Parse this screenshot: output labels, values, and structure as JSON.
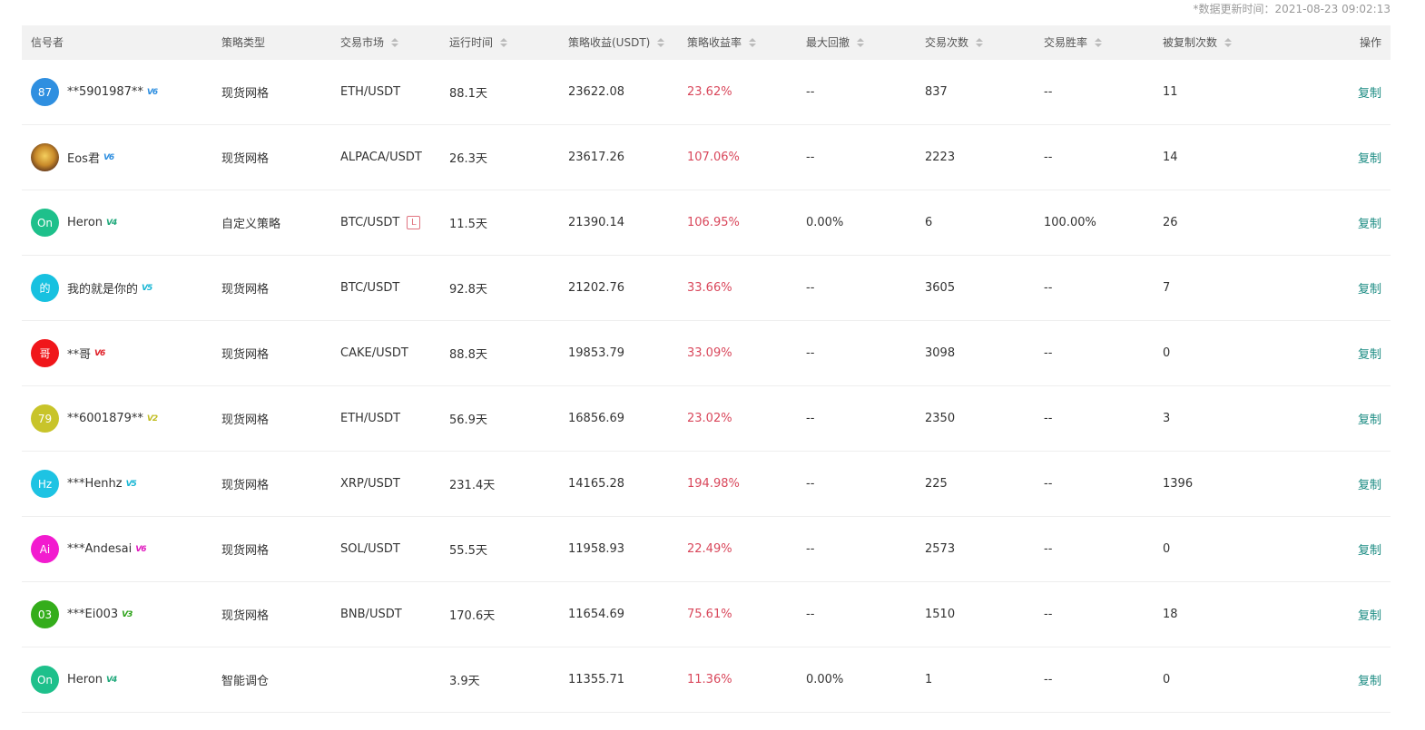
{
  "update_time": "*数据更新时间：2021-08-23 09:02:13",
  "columns": [
    {
      "key": "signal",
      "label": "信号者",
      "sortable": false
    },
    {
      "key": "type",
      "label": "策略类型",
      "sortable": false
    },
    {
      "key": "market",
      "label": "交易市场",
      "sortable": true
    },
    {
      "key": "runtime",
      "label": "运行时间",
      "sortable": true
    },
    {
      "key": "profit",
      "label": "策略收益(USDT)",
      "sortable": true
    },
    {
      "key": "rate",
      "label": "策略收益率",
      "sortable": true
    },
    {
      "key": "drawdown",
      "label": "最大回撤",
      "sortable": true
    },
    {
      "key": "trades",
      "label": "交易次数",
      "sortable": true
    },
    {
      "key": "winrate",
      "label": "交易胜率",
      "sortable": true
    },
    {
      "key": "copies",
      "label": "被复制次数",
      "sortable": true
    },
    {
      "key": "action",
      "label": "操作",
      "sortable": false
    }
  ],
  "action_label": "复制",
  "rows": [
    {
      "avatar_text": "87",
      "avatar_color": "#2f8fe0",
      "name": "**5901987**",
      "vip_label": "V6",
      "vip_color": "#2f8fe0",
      "type": "现货网格",
      "market": "ETH/USDT",
      "badge": "",
      "runtime": "88.1天",
      "profit": "23622.08",
      "rate": "23.62%",
      "drawdown": "--",
      "trades": "837",
      "winrate": "--",
      "copies": "11"
    },
    {
      "avatar_text": "",
      "avatar_color": "",
      "avatar_image": "emoji-avatar",
      "name": "Eos君",
      "vip_label": "V6",
      "vip_color": "#2f8fe0",
      "type": "现货网格",
      "market": "ALPACA/USDT",
      "badge": "",
      "runtime": "26.3天",
      "profit": "23617.26",
      "rate": "107.06%",
      "drawdown": "--",
      "trades": "2223",
      "winrate": "--",
      "copies": "14"
    },
    {
      "avatar_text": "On",
      "avatar_color": "#1ec08b",
      "name": "Heron",
      "vip_label": "V4",
      "vip_color": "#1ea87a",
      "type": "自定义策略",
      "market": "BTC/USDT",
      "badge": "L",
      "runtime": "11.5天",
      "profit": "21390.14",
      "rate": "106.95%",
      "drawdown": "0.00%",
      "trades": "6",
      "winrate": "100.00%",
      "copies": "26"
    },
    {
      "avatar_text": "的",
      "avatar_color": "#17c1e0",
      "name": "我的就是你的",
      "vip_label": "V5",
      "vip_color": "#17b6d4",
      "type": "现货网格",
      "market": "BTC/USDT",
      "badge": "",
      "runtime": "92.8天",
      "profit": "21202.76",
      "rate": "33.66%",
      "drawdown": "--",
      "trades": "3605",
      "winrate": "--",
      "copies": "7"
    },
    {
      "avatar_text": "哥",
      "avatar_color": "#f0161a",
      "name": "**哥",
      "vip_label": "V6",
      "vip_color": "#e0222a",
      "type": "现货网格",
      "market": "CAKE/USDT",
      "badge": "",
      "runtime": "88.8天",
      "profit": "19853.79",
      "rate": "33.09%",
      "drawdown": "--",
      "trades": "3098",
      "winrate": "--",
      "copies": "0"
    },
    {
      "avatar_text": "79",
      "avatar_color": "#c8c42a",
      "name": "**6001879**",
      "vip_label": "V2",
      "vip_color": "#c2be25",
      "type": "现货网格",
      "market": "ETH/USDT",
      "badge": "",
      "runtime": "56.9天",
      "profit": "16856.69",
      "rate": "23.02%",
      "drawdown": "--",
      "trades": "2350",
      "winrate": "--",
      "copies": "3"
    },
    {
      "avatar_text": "Hz",
      "avatar_color": "#1ec3e3",
      "name": "***Henhz",
      "vip_label": "V5",
      "vip_color": "#17b6d4",
      "type": "现货网格",
      "market": "XRP/USDT",
      "badge": "",
      "runtime": "231.4天",
      "profit": "14165.28",
      "rate": "194.98%",
      "drawdown": "--",
      "trades": "225",
      "winrate": "--",
      "copies": "1396"
    },
    {
      "avatar_text": "Ai",
      "avatar_color": "#f21bcf",
      "name": "***Andesai",
      "vip_label": "V6",
      "vip_color": "#e01bbf",
      "type": "现货网格",
      "market": "SOL/USDT",
      "badge": "",
      "runtime": "55.5天",
      "profit": "11958.93",
      "rate": "22.49%",
      "drawdown": "--",
      "trades": "2573",
      "winrate": "--",
      "copies": "0"
    },
    {
      "avatar_text": "03",
      "avatar_color": "#34ad1b",
      "name": "***Ei003",
      "vip_label": "V3",
      "vip_color": "#2ea31a",
      "type": "现货网格",
      "market": "BNB/USDT",
      "badge": "",
      "runtime": "170.6天",
      "profit": "11654.69",
      "rate": "75.61%",
      "drawdown": "--",
      "trades": "1510",
      "winrate": "--",
      "copies": "18"
    },
    {
      "avatar_text": "On",
      "avatar_color": "#1ec08b",
      "name": "Heron",
      "vip_label": "V4",
      "vip_color": "#1ea87a",
      "type": "智能调仓",
      "market": "",
      "badge": "",
      "runtime": "3.9天",
      "profit": "11355.71",
      "rate": "11.36%",
      "drawdown": "0.00%",
      "trades": "1",
      "winrate": "--",
      "copies": "0"
    }
  ]
}
